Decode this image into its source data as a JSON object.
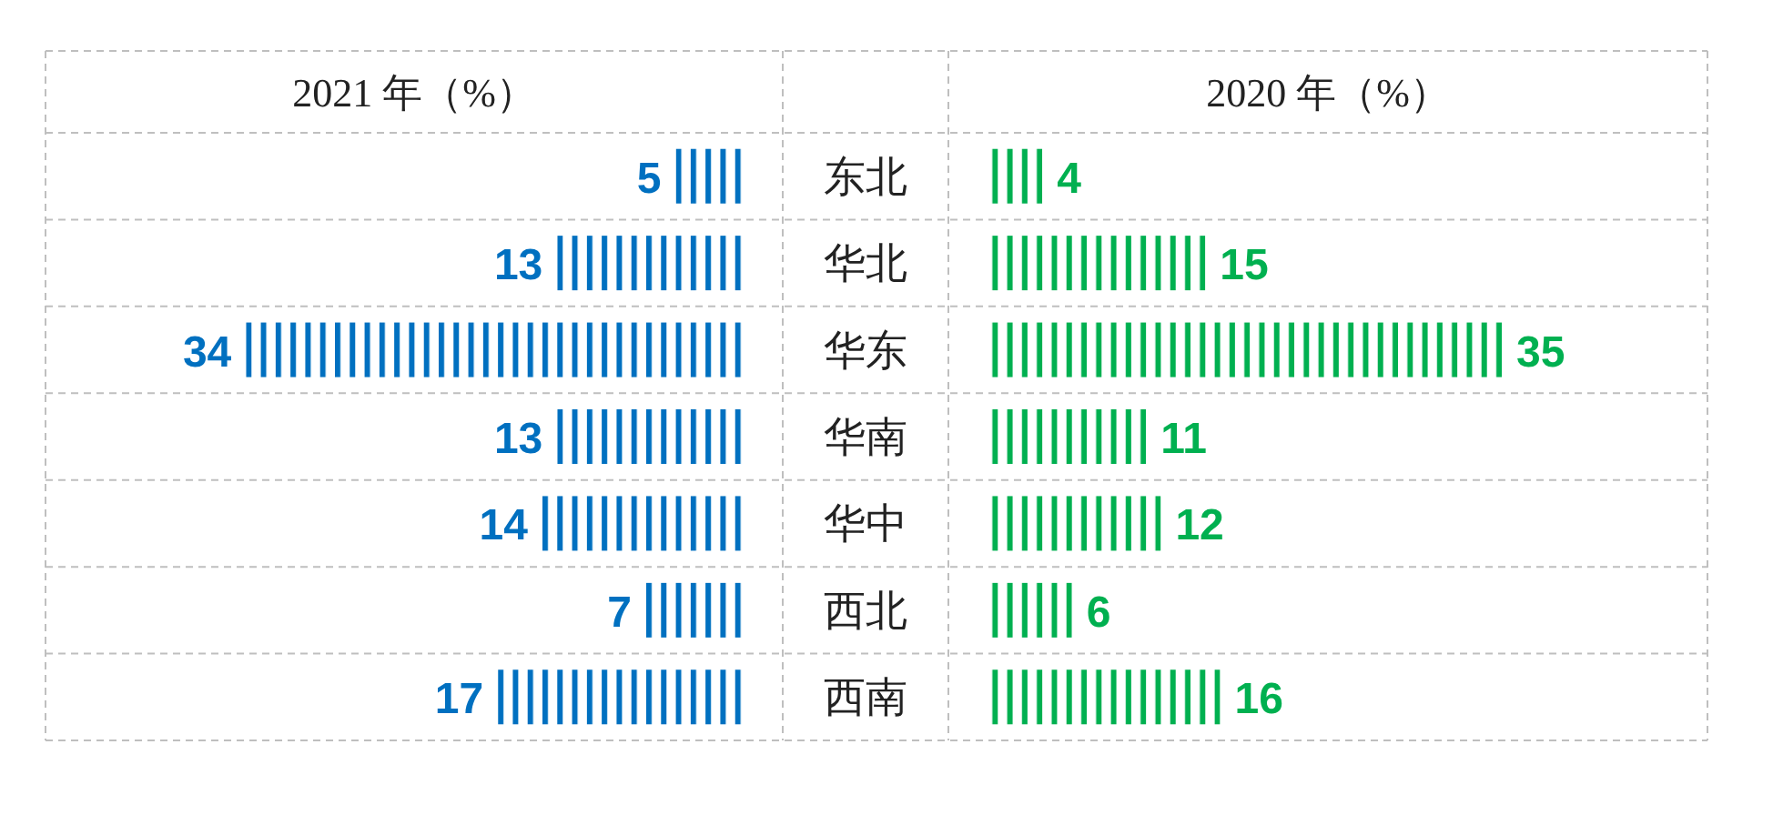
{
  "chart_data": [
    {
      "type": "bar",
      "orientation": "horizontal",
      "title": "2021 年（%）",
      "data_labels": true,
      "color": "#0070c0",
      "categories": [
        "东北",
        "华北",
        "华东",
        "华南",
        "华中",
        "西北",
        "西南"
      ],
      "values": [
        5,
        13,
        34,
        13,
        14,
        7,
        17
      ]
    },
    {
      "type": "bar",
      "orientation": "horizontal",
      "title": "2020 年（%）",
      "data_labels": true,
      "color": "#00b050",
      "categories": [
        null,
        null,
        null,
        null,
        null,
        null,
        null
      ],
      "values": [
        4,
        15,
        35,
        11,
        12,
        6,
        16
      ]
    }
  ]
}
